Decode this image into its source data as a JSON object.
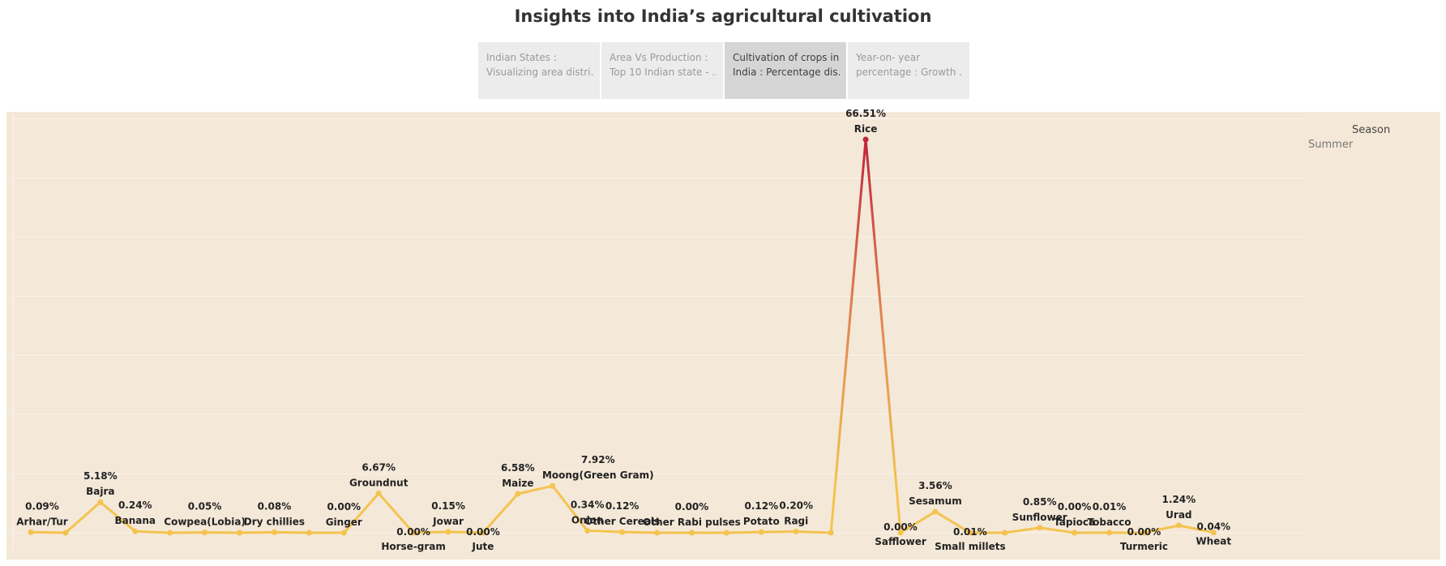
{
  "title": "Insights into India’s agricultural cultivation",
  "tabs": [
    {
      "line1": "Indian States :",
      "line2": "Visualizing area distri..",
      "active": false
    },
    {
      "line1": "Area Vs Production :",
      "line2": "Top 10 Indian state - ..",
      "active": false
    },
    {
      "line1": "Cultivation of crops in",
      "line2": "India : Percentage dis..",
      "active": true
    },
    {
      "line1": "Year-on- year",
      "line2": "percentage : Growth ..",
      "active": false
    }
  ],
  "legend": {
    "title": "Season",
    "items": [
      "Summer"
    ]
  },
  "colors": {
    "low": "#f4c34f",
    "mid": "#e08550",
    "high": "#c1253a",
    "background": "#f4e8d8"
  },
  "chart_data": {
    "type": "line",
    "title": "",
    "xlabel": "",
    "ylabel": "",
    "ylim": [
      0,
      70
    ],
    "grid": true,
    "legend_position": "top-right",
    "series": [
      {
        "name": "Summer",
        "points": [
          {
            "crop": "Arhar/Tur",
            "value": 0.09,
            "label": "0.09%",
            "show": true
          },
          {
            "crop": "",
            "value": 0.0,
            "label": "",
            "show": false
          },
          {
            "crop": "Bajra",
            "value": 5.18,
            "label": "5.18%",
            "show": true
          },
          {
            "crop": "Banana",
            "value": 0.24,
            "label": "0.24%",
            "show": true
          },
          {
            "crop": "",
            "value": 0.0,
            "label": "",
            "show": false
          },
          {
            "crop": "Cowpea(Lobia)",
            "value": 0.05,
            "label": "0.05%",
            "show": true
          },
          {
            "crop": "",
            "value": 0.0,
            "label": "",
            "show": false
          },
          {
            "crop": "Dry chillies",
            "value": 0.08,
            "label": "0.08%",
            "show": true
          },
          {
            "crop": "",
            "value": 0.0,
            "label": "",
            "show": false
          },
          {
            "crop": "Ginger",
            "value": 0.0,
            "label": "0.00%",
            "show": true
          },
          {
            "crop": "Groundnut",
            "value": 6.67,
            "label": "6.67%",
            "show": true
          },
          {
            "crop": "Horse-gram",
            "value": 0.0,
            "label": "0.00%",
            "show": true
          },
          {
            "crop": "Jowar",
            "value": 0.15,
            "label": "0.15%",
            "show": true
          },
          {
            "crop": "Jute",
            "value": 0.0,
            "label": "0.00%",
            "show": true
          },
          {
            "crop": "Maize",
            "value": 6.58,
            "label": "6.58%",
            "show": true
          },
          {
            "crop": "Moong(Green Gram)",
            "value": 7.92,
            "label": "7.92%",
            "show": true
          },
          {
            "crop": "Onion",
            "value": 0.34,
            "label": "0.34%",
            "show": true
          },
          {
            "crop": "Other Cereals",
            "value": 0.12,
            "label": "0.12%",
            "show": true
          },
          {
            "crop": "",
            "value": 0.0,
            "label": "",
            "show": false
          },
          {
            "crop": "Other Rabi pulses",
            "value": 0.0,
            "label": "0.00%",
            "show": true
          },
          {
            "crop": "",
            "value": 0.0,
            "label": "",
            "show": false
          },
          {
            "crop": "Potato",
            "value": 0.12,
            "label": "0.12%",
            "show": true
          },
          {
            "crop": "Ragi",
            "value": 0.2,
            "label": "0.20%",
            "show": true
          },
          {
            "crop": "",
            "value": 0.0,
            "label": "",
            "show": false
          },
          {
            "crop": "Rice",
            "value": 66.51,
            "label": "66.51%",
            "show": true
          },
          {
            "crop": "Safflower",
            "value": 0.0,
            "label": "0.00%",
            "show": true
          },
          {
            "crop": "Sesamum",
            "value": 3.56,
            "label": "3.56%",
            "show": true
          },
          {
            "crop": "Small millets",
            "value": 0.01,
            "label": "0.01%",
            "show": true
          },
          {
            "crop": "",
            "value": 0.0,
            "label": "",
            "show": false
          },
          {
            "crop": "Sunflower",
            "value": 0.85,
            "label": "0.85%",
            "show": true
          },
          {
            "crop": "Tapioca",
            "value": 0.0,
            "label": "0.00%",
            "show": true
          },
          {
            "crop": "Tobacco",
            "value": 0.01,
            "label": "0.01%",
            "show": true
          },
          {
            "crop": "Turmeric",
            "value": 0.0,
            "label": "0.00%",
            "show": true
          },
          {
            "crop": "Urad",
            "value": 1.24,
            "label": "1.24%",
            "show": true
          },
          {
            "crop": "Wheat",
            "value": 0.04,
            "label": "0.04%",
            "show": true
          }
        ]
      }
    ]
  }
}
